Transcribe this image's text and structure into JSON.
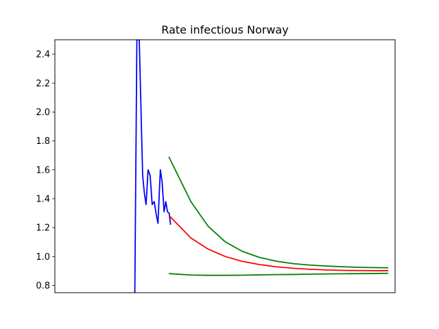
{
  "chart_data": {
    "type": "line",
    "title": "Rate infectious Norway",
    "xlabel": "",
    "ylabel": "",
    "xlim": [
      0,
      100
    ],
    "ylim": [
      0.75,
      2.5
    ],
    "y_ticks": [
      0.8,
      1.0,
      1.2,
      1.4,
      1.6,
      1.8,
      2.0,
      2.2,
      2.4
    ],
    "y_tick_labels": [
      "0.8",
      "1.0",
      "1.2",
      "1.4",
      "1.6",
      "1.8",
      "2.0",
      "2.2",
      "2.4"
    ],
    "x_ticks_visible": false,
    "grid": false,
    "legend": "none",
    "series": [
      {
        "color": "#0000ff",
        "x": [
          23.5,
          24.1,
          24.8,
          25.8,
          26.3,
          26.8,
          27.4,
          28.0,
          28.6,
          29.2,
          29.8,
          30.3,
          31.0,
          31.5,
          32.1,
          32.6,
          33.1,
          33.6,
          34.0
        ],
        "y": [
          0.75,
          2.5,
          2.5,
          1.56,
          1.44,
          1.36,
          1.6,
          1.56,
          1.36,
          1.38,
          1.29,
          1.23,
          1.6,
          1.52,
          1.31,
          1.38,
          1.31,
          1.3,
          1.22
        ]
      },
      {
        "color": "#ff0000",
        "x": [
          33.5,
          40,
          45,
          50,
          55,
          60,
          65,
          70,
          75,
          80,
          85,
          90,
          95,
          98
        ],
        "y": [
          1.285,
          1.128,
          1.052,
          1.001,
          0.967,
          0.945,
          0.929,
          0.919,
          0.912,
          0.907,
          0.904,
          0.903,
          0.902,
          0.902
        ]
      },
      {
        "color": "#008000",
        "x": [
          33.5,
          40,
          45,
          50,
          55,
          60,
          65,
          70,
          75,
          80,
          85,
          90,
          95,
          98
        ],
        "y": [
          1.69,
          1.379,
          1.211,
          1.103,
          1.037,
          0.995,
          0.968,
          0.951,
          0.941,
          0.934,
          0.929,
          0.925,
          0.923,
          0.922
        ]
      },
      {
        "color": "#008000",
        "x": [
          33.5,
          40,
          45,
          50,
          55,
          60,
          65,
          70,
          75,
          80,
          85,
          90,
          95,
          98
        ],
        "y": [
          0.882,
          0.872,
          0.87,
          0.87,
          0.871,
          0.873,
          0.875,
          0.876,
          0.878,
          0.88,
          0.881,
          0.882,
          0.883,
          0.884
        ]
      }
    ]
  }
}
